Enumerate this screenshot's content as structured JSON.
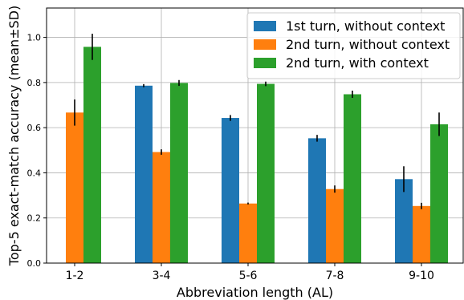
{
  "chart_data": {
    "type": "bar",
    "categories": [
      "1-2",
      "3-4",
      "5-6",
      "7-8",
      "9-10"
    ],
    "series": [
      {
        "name": "1st turn, without context",
        "color": "#1f77b4",
        "values": [
          null,
          0.786,
          0.643,
          0.553,
          0.372
        ],
        "errors": [
          null,
          0.007,
          0.013,
          0.015,
          0.057
        ]
      },
      {
        "name": "2nd turn, without context",
        "color": "#ff7f0e",
        "values": [
          0.667,
          0.492,
          0.264,
          0.328,
          0.253
        ],
        "errors": [
          0.058,
          0.012,
          0.004,
          0.016,
          0.014
        ]
      },
      {
        "name": "2nd turn, with context",
        "color": "#2ca02c",
        "values": [
          0.958,
          0.798,
          0.794,
          0.748,
          0.615
        ],
        "errors": [
          0.058,
          0.013,
          0.01,
          0.016,
          0.052
        ]
      }
    ],
    "xlabel": "Abbreviation length (AL)",
    "ylabel": "Top-5 exact-match accuracy (mean±SD)",
    "ylim": [
      0,
      1.13
    ],
    "yticks": [
      "0.0",
      "0.2",
      "0.4",
      "0.6",
      "0.8",
      "1.0"
    ],
    "grid": true,
    "legend_position": "top-right"
  }
}
